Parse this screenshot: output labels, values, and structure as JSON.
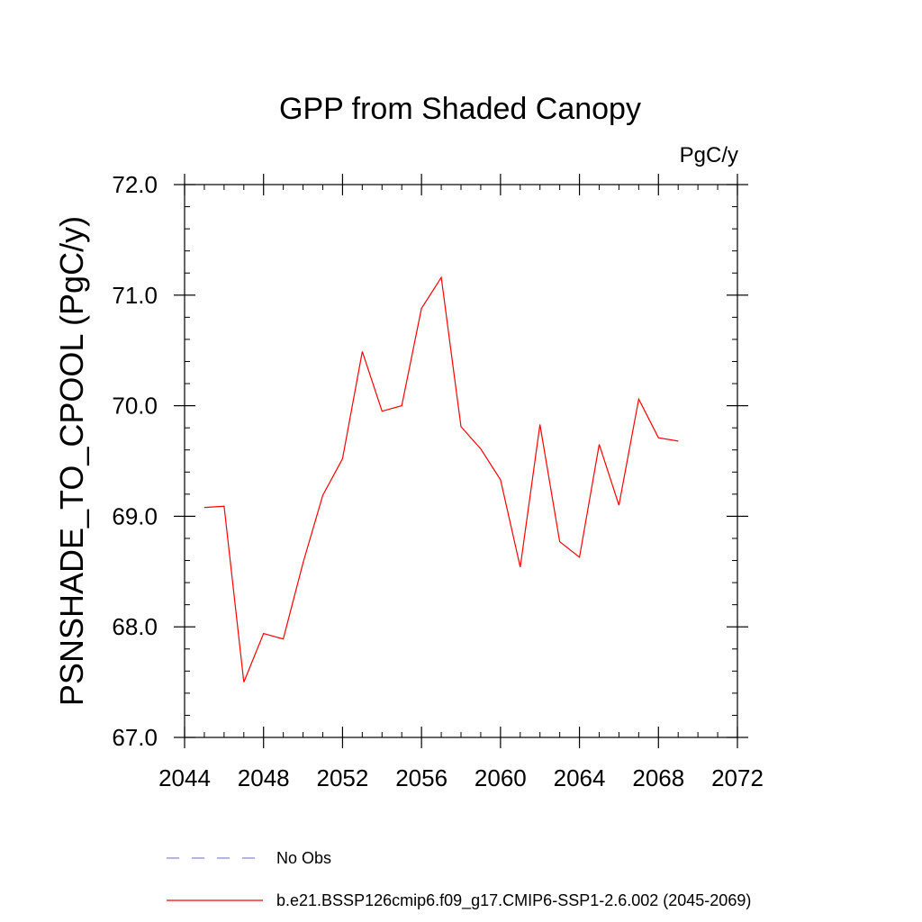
{
  "chart_data": {
    "type": "line",
    "title": "GPP from Shaded Canopy",
    "ylabel": "PSNSHADE_TO_CPOOL  (PgC/y)",
    "units": "PgC/y",
    "xlim": [
      2044,
      2072
    ],
    "ylim": [
      67.0,
      72.0
    ],
    "x_ticks": [
      2044,
      2048,
      2052,
      2056,
      2060,
      2064,
      2068,
      2072
    ],
    "x_tick_labels": [
      "2044",
      "2048",
      "2052",
      "2056",
      "2060",
      "2064",
      "2068",
      "2072"
    ],
    "y_ticks": [
      67.0,
      68.0,
      69.0,
      70.0,
      71.0,
      72.0
    ],
    "y_tick_labels": [
      "67.0",
      "68.0",
      "69.0",
      "70.0",
      "71.0",
      "72.0"
    ],
    "grid": false,
    "legend_placement": "bottom",
    "series": [
      {
        "name": "b.e21.BSSP126cmip6.f09_g17.CMIP6-SSP1-2.6.002 (2045-2069)",
        "color": "#ff0000",
        "style": "solid",
        "x": [
          2045,
          2046,
          2047,
          2048,
          2049,
          2050,
          2051,
          2052,
          2053,
          2054,
          2055,
          2056,
          2057,
          2058,
          2059,
          2060,
          2061,
          2062,
          2063,
          2064,
          2065,
          2066,
          2067,
          2068,
          2069
        ],
        "y": [
          69.08,
          69.09,
          67.5,
          67.94,
          67.89,
          68.58,
          69.19,
          69.52,
          70.49,
          69.95,
          70.0,
          70.88,
          71.16,
          69.81,
          69.61,
          69.33,
          68.54,
          69.83,
          68.77,
          68.63,
          69.65,
          69.1,
          70.06,
          69.71,
          69.68
        ]
      },
      {
        "name": "No Obs",
        "color": "#8888cc",
        "style": "dashed",
        "x": [],
        "y": []
      }
    ]
  }
}
